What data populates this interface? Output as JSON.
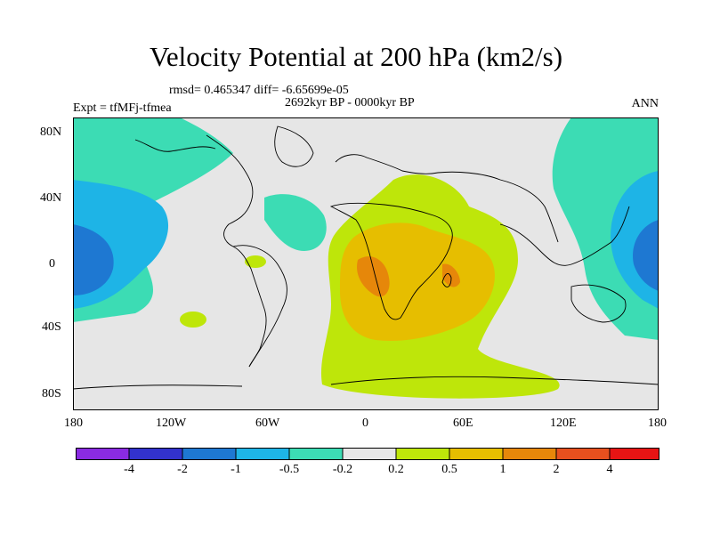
{
  "title": "Velocity Potential at 200 hPa (km2/s)",
  "rmsd_line": "rmsd= 0.465347 diff= -6.65699e-05",
  "period": "2692kyr BP - 0000kyr BP",
  "left_label": "Expt = tfMFj-tfmea",
  "right_label": "ANN",
  "axes": {
    "x_ticks": [
      "180",
      "120W",
      "60W",
      "0",
      "60E",
      "120E",
      "180"
    ],
    "y_ticks": [
      "80N",
      "40N",
      "0",
      "40S",
      "80S"
    ]
  },
  "colorbar": {
    "labels": [
      "-4",
      "-2",
      "-1",
      "-0.5",
      "-0.2",
      "0.2",
      "0.5",
      "1",
      "2",
      "4"
    ],
    "colors": [
      "#8a2be2",
      "#3232cd",
      "#1e78d2",
      "#1eb4e6",
      "#3cdcb4",
      "#e6e6e6",
      "#bee60a",
      "#e6be00",
      "#e6870a",
      "#e6501e",
      "#e61414"
    ]
  },
  "colors": {
    "background": "#e6e6e6",
    "neg_weak": "#3cdcb4",
    "neg_mid": "#1eb4e6",
    "neg_strong": "#1e78d2",
    "pos_weak": "#bee60a",
    "pos_mid": "#e6be00",
    "pos_strong": "#e6870a"
  }
}
